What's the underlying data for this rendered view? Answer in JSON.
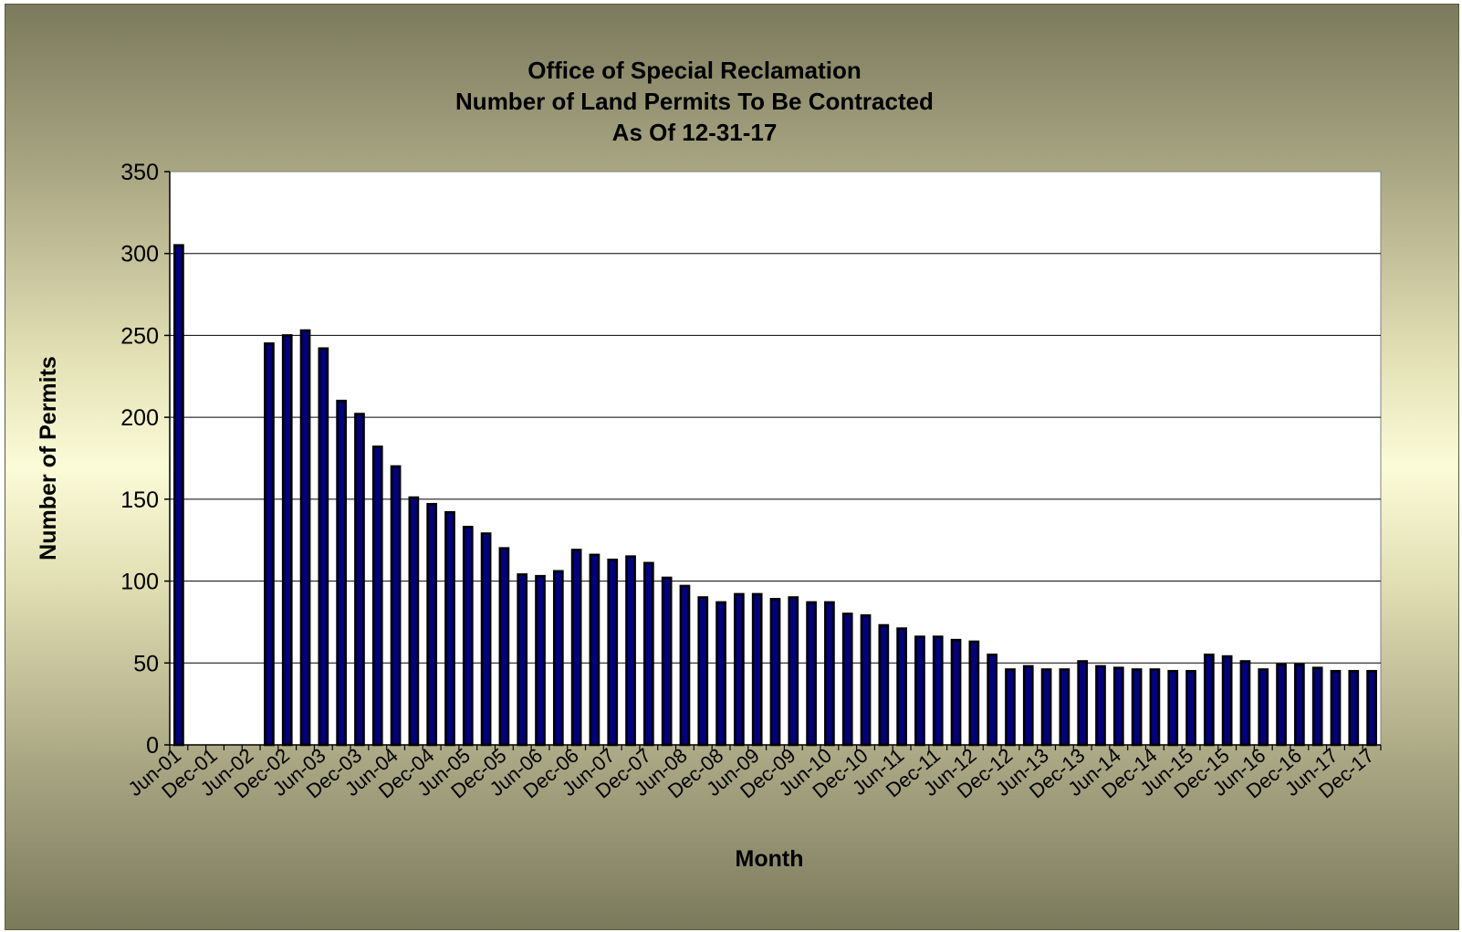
{
  "chart_data": {
    "type": "bar",
    "title_lines": [
      "Office of Special Reclamation",
      "Number of Land Permits To Be Contracted",
      "As Of 12-31-17"
    ],
    "xlabel": "Month",
    "ylabel": "Number of Permits",
    "ylim": [
      0,
      350
    ],
    "yticks": [
      0,
      50,
      100,
      150,
      200,
      250,
      300,
      350
    ],
    "grid": true,
    "legend": "none",
    "bar_color": "#000080",
    "x_tick_labels": [
      "Jun-01",
      "Dec-01",
      "Jun-02",
      "Dec-02",
      "Jun-03",
      "Dec-03",
      "Jun-04",
      "Dec-04",
      "Jun-05",
      "Dec-05",
      "Jun-06",
      "Dec-06",
      "Jun-07",
      "Dec-07",
      "Jun-08",
      "Dec-08",
      "Jun-09",
      "Dec-09",
      "Jun-10",
      "Dec-10",
      "Jun-11",
      "Dec-11",
      "Jun-12",
      "Dec-12",
      "Jun-13",
      "Dec-13",
      "Jun-14",
      "Dec-14",
      "Jun-15",
      "Dec-15",
      "Jun-16",
      "Dec-16",
      "Jun-17",
      "Dec-17"
    ],
    "values": [
      305,
      0,
      0,
      0,
      0,
      245,
      250,
      253,
      242,
      210,
      202,
      182,
      170,
      151,
      147,
      142,
      133,
      129,
      120,
      104,
      103,
      106,
      119,
      116,
      113,
      115,
      111,
      102,
      97,
      90,
      87,
      92,
      92,
      89,
      90,
      87,
      87,
      80,
      79,
      73,
      71,
      66,
      66,
      64,
      63,
      55,
      46,
      48,
      46,
      46,
      51,
      48,
      47,
      46,
      46,
      45,
      45,
      55,
      54,
      51,
      46,
      49,
      49,
      47,
      45,
      45,
      45
    ]
  }
}
